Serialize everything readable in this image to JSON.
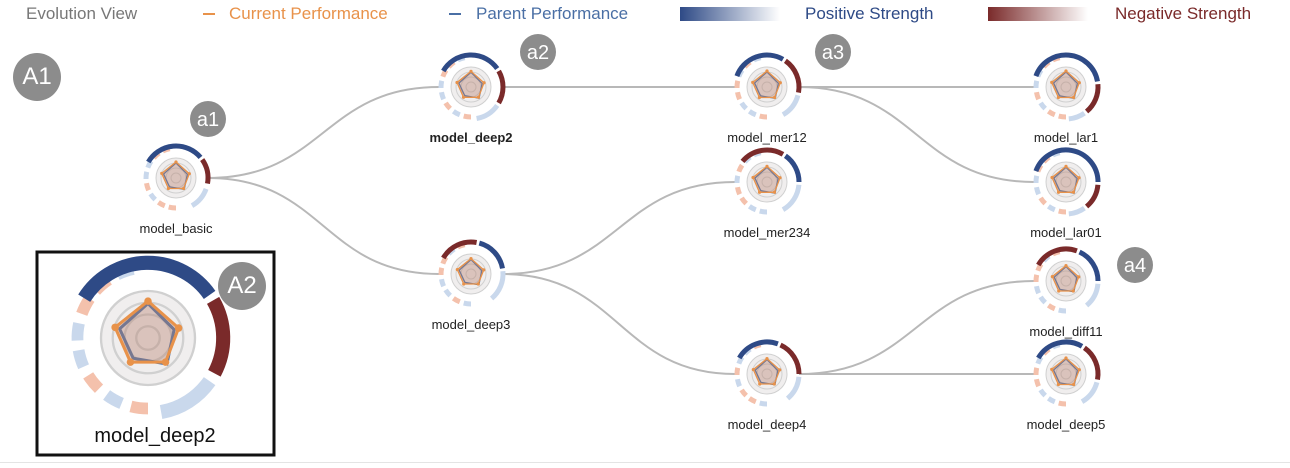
{
  "legend": {
    "title": "Evolution View",
    "current_label": "Current Performance",
    "parent_label": "Parent Performance",
    "positive_label": "Positive Strength",
    "negative_label": "Negative Strength"
  },
  "colors": {
    "current": "#e8924a",
    "parent": "#4a6fa5",
    "positive_strong": "#2e4a86",
    "positive_light": "#c9d8ec",
    "negative_strong": "#7a2a2a",
    "negative_light": "#f4c1ac",
    "edge": "#b8b8b8",
    "badge": "#8c8c8c"
  },
  "badges": {
    "A1": "A1",
    "A2": "A2",
    "a1": "a1",
    "a2": "a2",
    "a3": "a3",
    "a4": "a4"
  },
  "nodes": [
    {
      "id": "basic",
      "label": "model_basic",
      "bold": false
    },
    {
      "id": "deep2",
      "label": "model_deep2",
      "bold": true
    },
    {
      "id": "deep3",
      "label": "model_deep3",
      "bold": false
    },
    {
      "id": "mer12",
      "label": "model_mer12",
      "bold": false
    },
    {
      "id": "mer234",
      "label": "model_mer234",
      "bold": false
    },
    {
      "id": "deep4",
      "label": "model_deep4",
      "bold": false
    },
    {
      "id": "lar1",
      "label": "model_lar1",
      "bold": false
    },
    {
      "id": "lar01",
      "label": "model_lar01",
      "bold": false
    },
    {
      "id": "diff11",
      "label": "model_diff11",
      "bold": false
    },
    {
      "id": "deep5",
      "label": "model_deep5",
      "bold": false
    }
  ],
  "edges": [
    [
      "basic",
      "deep2"
    ],
    [
      "basic",
      "deep3"
    ],
    [
      "deep2",
      "mer12"
    ],
    [
      "deep3",
      "mer234"
    ],
    [
      "deep3",
      "deep4"
    ],
    [
      "mer12",
      "lar1"
    ],
    [
      "mer12",
      "lar01"
    ],
    [
      "deep4",
      "diff11"
    ],
    [
      "deep4",
      "deep5"
    ]
  ],
  "inset": {
    "label": "model_deep2"
  }
}
